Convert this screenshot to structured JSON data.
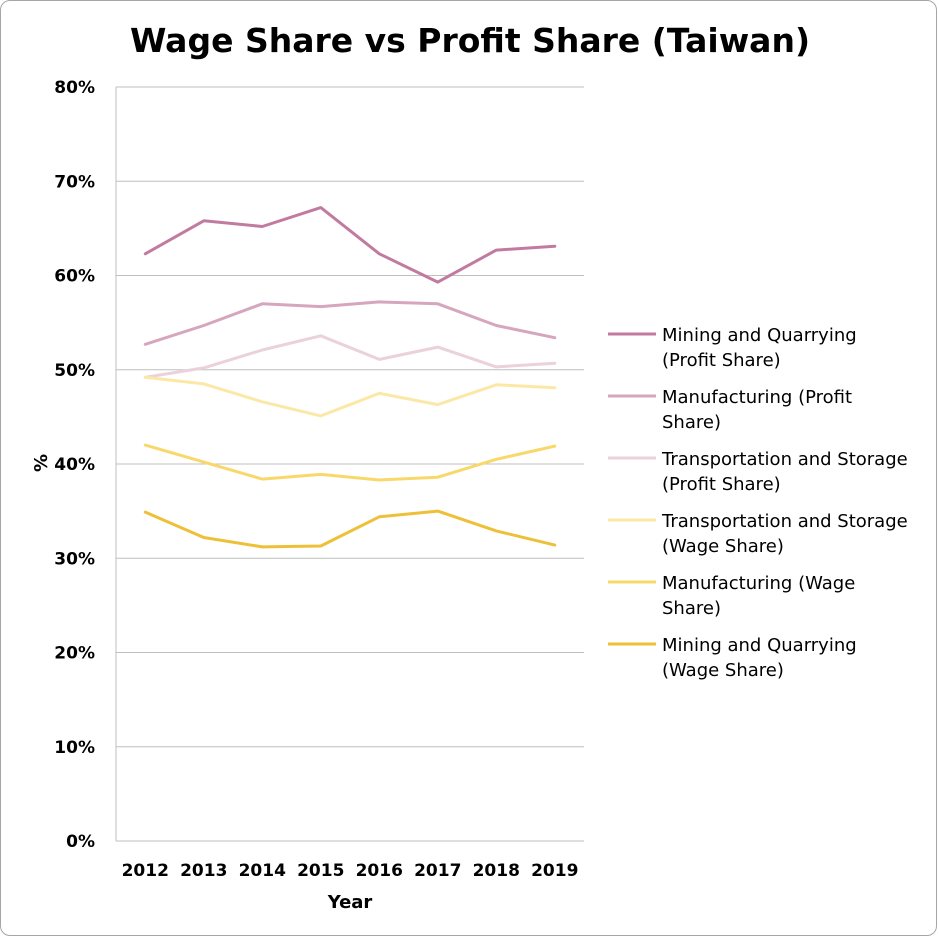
{
  "chart_data": {
    "type": "line",
    "title": "Wage Share vs Profit Share (Taiwan)",
    "xlabel": "Year",
    "ylabel": "%",
    "ylim": [
      0,
      80
    ],
    "y_ticks": [
      "0%",
      "10%",
      "20%",
      "30%",
      "40%",
      "50%",
      "60%",
      "70%",
      "80%"
    ],
    "grid": true,
    "legend_position": "right",
    "categories": [
      "2012",
      "2013",
      "2014",
      "2015",
      "2016",
      "2017",
      "2018",
      "2019"
    ],
    "series": [
      {
        "name": "Mining and Quarrying (Profit Share)",
        "legend_lines": [
          "Mining and Quarrying",
          "(Profit Share)"
        ],
        "color": "#c27ba0",
        "values": [
          62.3,
          65.8,
          65.2,
          67.2,
          62.3,
          59.3,
          62.7,
          63.1
        ]
      },
      {
        "name": "Manufacturing (Profit Share)",
        "legend_lines": [
          "Manufacturing (Profit",
          "Share)"
        ],
        "color": "#d5a6bd",
        "values": [
          52.7,
          54.7,
          57.0,
          56.7,
          57.2,
          57.0,
          54.7,
          53.4
        ]
      },
      {
        "name": "Transportation and Storage (Profit Share)",
        "legend_lines": [
          "Transportation and Storage",
          "(Profit Share)"
        ],
        "color": "#ead1dc",
        "values": [
          49.2,
          50.2,
          52.1,
          53.6,
          51.1,
          52.4,
          50.3,
          50.7
        ]
      },
      {
        "name": "Transportation and Storage (Wage Share)",
        "legend_lines": [
          "Transportation and Storage",
          "(Wage Share)"
        ],
        "color": "#fce8a6",
        "values": [
          49.2,
          48.5,
          46.6,
          45.1,
          47.5,
          46.3,
          48.4,
          48.1
        ]
      },
      {
        "name": "Manufacturing (Wage Share)",
        "legend_lines": [
          "Manufacturing (Wage",
          "Share)"
        ],
        "color": "#f9d86b",
        "values": [
          42.0,
          40.2,
          38.4,
          38.9,
          38.3,
          38.6,
          40.5,
          41.9
        ]
      },
      {
        "name": "Mining and Quarrying (Wage Share)",
        "legend_lines": [
          "Mining and Quarrying",
          "(Wage Share)"
        ],
        "color": "#eec038",
        "values": [
          34.9,
          32.2,
          31.2,
          31.3,
          34.4,
          35.0,
          32.9,
          31.4
        ]
      }
    ]
  }
}
